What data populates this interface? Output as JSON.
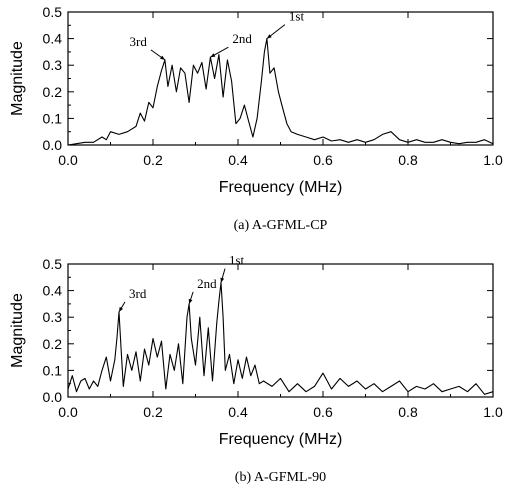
{
  "chart_data": [
    {
      "type": "line",
      "caption": "(a) A-GFML-CP",
      "xlabel": "Frequency (MHz)",
      "ylabel": "Magnitude",
      "xlim": [
        0.0,
        1.0
      ],
      "ylim": [
        0.0,
        0.5
      ],
      "xticks": [
        "0.0",
        "0.2",
        "0.4",
        "0.6",
        "0.8",
        "1.0"
      ],
      "yticks": [
        "0.0",
        "0.1",
        "0.2",
        "0.3",
        "0.4",
        "0.5"
      ],
      "grid": false,
      "annotations": [
        {
          "text": "1st",
          "x": 0.468,
          "y": 0.4
        },
        {
          "text": "2nd",
          "x": 0.335,
          "y": 0.33
        },
        {
          "text": "3rd",
          "x": 0.228,
          "y": 0.32
        }
      ],
      "x": [
        0.0,
        0.02,
        0.04,
        0.06,
        0.08,
        0.09,
        0.1,
        0.12,
        0.14,
        0.16,
        0.17,
        0.18,
        0.19,
        0.2,
        0.21,
        0.22,
        0.228,
        0.235,
        0.245,
        0.255,
        0.265,
        0.275,
        0.285,
        0.295,
        0.305,
        0.315,
        0.325,
        0.335,
        0.345,
        0.355,
        0.365,
        0.375,
        0.385,
        0.395,
        0.405,
        0.415,
        0.425,
        0.435,
        0.445,
        0.455,
        0.462,
        0.468,
        0.475,
        0.485,
        0.495,
        0.505,
        0.515,
        0.525,
        0.54,
        0.56,
        0.58,
        0.6,
        0.62,
        0.64,
        0.66,
        0.68,
        0.7,
        0.72,
        0.74,
        0.76,
        0.78,
        0.8,
        0.82,
        0.84,
        0.86,
        0.88,
        0.9,
        0.92,
        0.94,
        0.96,
        0.98,
        1.0
      ],
      "y": [
        0.0,
        0.005,
        0.01,
        0.01,
        0.03,
        0.02,
        0.05,
        0.04,
        0.05,
        0.07,
        0.12,
        0.09,
        0.16,
        0.14,
        0.22,
        0.28,
        0.32,
        0.22,
        0.3,
        0.2,
        0.29,
        0.27,
        0.16,
        0.3,
        0.27,
        0.31,
        0.21,
        0.33,
        0.25,
        0.34,
        0.18,
        0.32,
        0.24,
        0.08,
        0.1,
        0.15,
        0.09,
        0.03,
        0.1,
        0.24,
        0.35,
        0.4,
        0.27,
        0.29,
        0.2,
        0.14,
        0.08,
        0.05,
        0.04,
        0.03,
        0.02,
        0.03,
        0.015,
        0.02,
        0.01,
        0.02,
        0.01,
        0.02,
        0.04,
        0.05,
        0.02,
        0.01,
        0.02,
        0.01,
        0.01,
        0.02,
        0.01,
        0.005,
        0.01,
        0.01,
        0.02,
        0.005
      ]
    },
    {
      "type": "line",
      "caption": "(b) A-GFML-90",
      "xlabel": "Frequency (MHz)",
      "ylabel": "Magnitude",
      "xlim": [
        0.0,
        1.0
      ],
      "ylim": [
        0.0,
        0.5
      ],
      "xticks": [
        "0.0",
        "0.2",
        "0.4",
        "0.6",
        "0.8",
        "1.0"
      ],
      "yticks": [
        "0.0",
        "0.1",
        "0.2",
        "0.3",
        "0.4",
        "0.5"
      ],
      "grid": false,
      "annotations": [
        {
          "text": "1st",
          "x": 0.36,
          "y": 0.43
        },
        {
          "text": "2nd",
          "x": 0.285,
          "y": 0.35
        },
        {
          "text": "3rd",
          "x": 0.12,
          "y": 0.32
        }
      ],
      "x": [
        0.0,
        0.01,
        0.02,
        0.03,
        0.04,
        0.05,
        0.06,
        0.07,
        0.08,
        0.09,
        0.1,
        0.11,
        0.115,
        0.12,
        0.125,
        0.13,
        0.14,
        0.15,
        0.16,
        0.17,
        0.18,
        0.19,
        0.2,
        0.21,
        0.22,
        0.23,
        0.24,
        0.25,
        0.26,
        0.27,
        0.28,
        0.285,
        0.29,
        0.3,
        0.31,
        0.32,
        0.33,
        0.34,
        0.35,
        0.355,
        0.36,
        0.365,
        0.37,
        0.38,
        0.39,
        0.4,
        0.41,
        0.42,
        0.43,
        0.44,
        0.45,
        0.46,
        0.48,
        0.5,
        0.52,
        0.54,
        0.56,
        0.58,
        0.6,
        0.62,
        0.64,
        0.66,
        0.68,
        0.7,
        0.72,
        0.74,
        0.76,
        0.78,
        0.8,
        0.82,
        0.84,
        0.86,
        0.88,
        0.9,
        0.92,
        0.94,
        0.96,
        0.98,
        1.0
      ],
      "y": [
        0.03,
        0.08,
        0.02,
        0.06,
        0.07,
        0.03,
        0.06,
        0.04,
        0.1,
        0.15,
        0.06,
        0.14,
        0.22,
        0.32,
        0.18,
        0.04,
        0.16,
        0.1,
        0.17,
        0.06,
        0.18,
        0.12,
        0.22,
        0.15,
        0.21,
        0.03,
        0.16,
        0.1,
        0.2,
        0.05,
        0.3,
        0.35,
        0.22,
        0.12,
        0.3,
        0.08,
        0.26,
        0.06,
        0.28,
        0.36,
        0.43,
        0.3,
        0.1,
        0.16,
        0.05,
        0.14,
        0.07,
        0.15,
        0.08,
        0.12,
        0.05,
        0.06,
        0.04,
        0.07,
        0.02,
        0.05,
        0.02,
        0.04,
        0.09,
        0.03,
        0.07,
        0.04,
        0.06,
        0.03,
        0.05,
        0.02,
        0.04,
        0.06,
        0.02,
        0.04,
        0.03,
        0.05,
        0.02,
        0.03,
        0.04,
        0.02,
        0.05,
        0.01,
        0.02
      ]
    }
  ]
}
